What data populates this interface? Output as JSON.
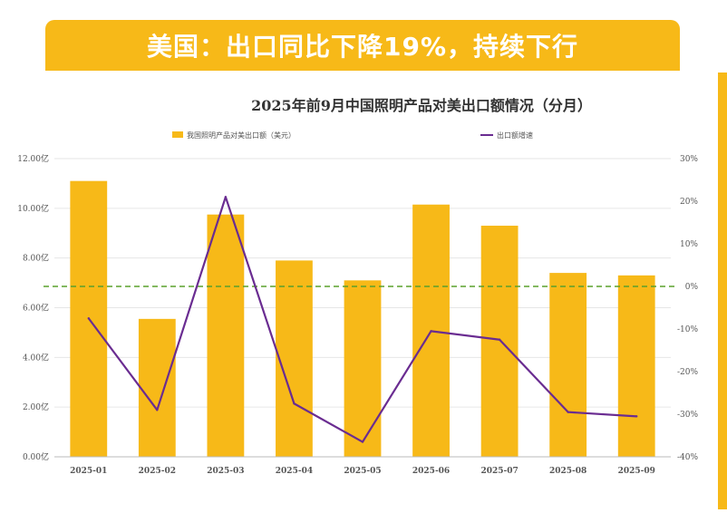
{
  "banner": {
    "title": "美国：出口同比下降19%，持续下行"
  },
  "chart_data": {
    "type": "bar",
    "title": "2025年前9月中国照明产品对美出口额情况（分月）",
    "categories": [
      "2025-01",
      "2025-02",
      "2025-03",
      "2025-04",
      "2025-05",
      "2025-06",
      "2025-07",
      "2025-08",
      "2025-09"
    ],
    "series": [
      {
        "name": "我国照明产品对美出口额（美元）",
        "type": "bar",
        "axis": "left",
        "color": "#f7b918",
        "values": [
          11.1,
          5.55,
          9.75,
          7.9,
          7.1,
          10.15,
          9.3,
          7.4,
          7.3
        ]
      },
      {
        "name": "出口额增速",
        "type": "line",
        "axis": "right",
        "color": "#6a2c91",
        "values": [
          -7.5,
          -29,
          21,
          -27.5,
          -36.5,
          -10.5,
          -12.5,
          -29.5,
          -30.5
        ]
      }
    ],
    "y_left": {
      "min": 0,
      "max": 12,
      "ticks": [
        "0.00亿",
        "2.00亿",
        "4.00亿",
        "6.00亿",
        "8.00亿",
        "10.00亿",
        "12.00亿"
      ]
    },
    "y_right": {
      "min": -40,
      "max": 30,
      "ticks": [
        "-40%",
        "-30%",
        "-20%",
        "-10%",
        "0%",
        "10%",
        "20%",
        "30%"
      ]
    },
    "zero_line": {
      "value": 0,
      "style": "dashed",
      "color": "#5aa02c"
    },
    "legend": {
      "placement": "top"
    },
    "grid": true
  }
}
